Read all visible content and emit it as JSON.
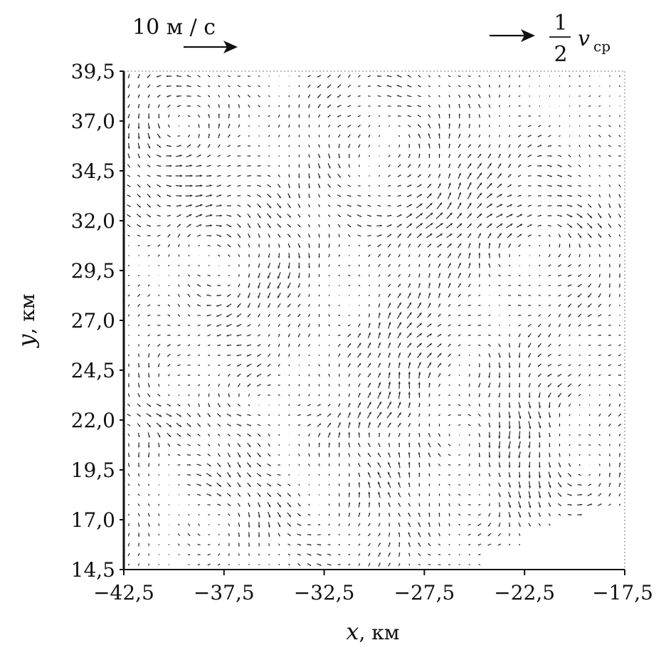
{
  "chart_data": {
    "type": "vector_field",
    "xlabel": {
      "var": "x",
      "unit": ", км"
    },
    "ylabel": {
      "var": "y",
      "unit": ", км"
    },
    "xlim": [
      -42.5,
      -17.5
    ],
    "ylim": [
      14.5,
      39.5
    ],
    "x_ticks": [
      -42.5,
      -37.5,
      -32.5,
      -27.5,
      -22.5,
      -17.5
    ],
    "x_tick_labels": [
      "−42,5",
      "−37,5",
      "−32,5",
      "−27,5",
      "−22,5",
      "−17,5"
    ],
    "y_ticks": [
      14.5,
      17.0,
      19.5,
      22.0,
      24.5,
      27.0,
      29.5,
      32.0,
      34.5,
      37.0,
      39.5
    ],
    "y_tick_labels": [
      "14,5",
      "17,0",
      "19,5",
      "22,0",
      "24,5",
      "27,0",
      "29,5",
      "32,0",
      "34,5",
      "37,0",
      "39,5"
    ],
    "grid_spacing_km": 0.5,
    "reference_vectors": [
      {
        "label": "10 м / с",
        "speed_m_s": 10
      },
      {
        "label_numerator": "1",
        "label_denominator": "2",
        "label_var": "v",
        "label_sub": "ср"
      }
    ],
    "no_data_region_corner": "bottom-right",
    "note_color": "#222222"
  }
}
